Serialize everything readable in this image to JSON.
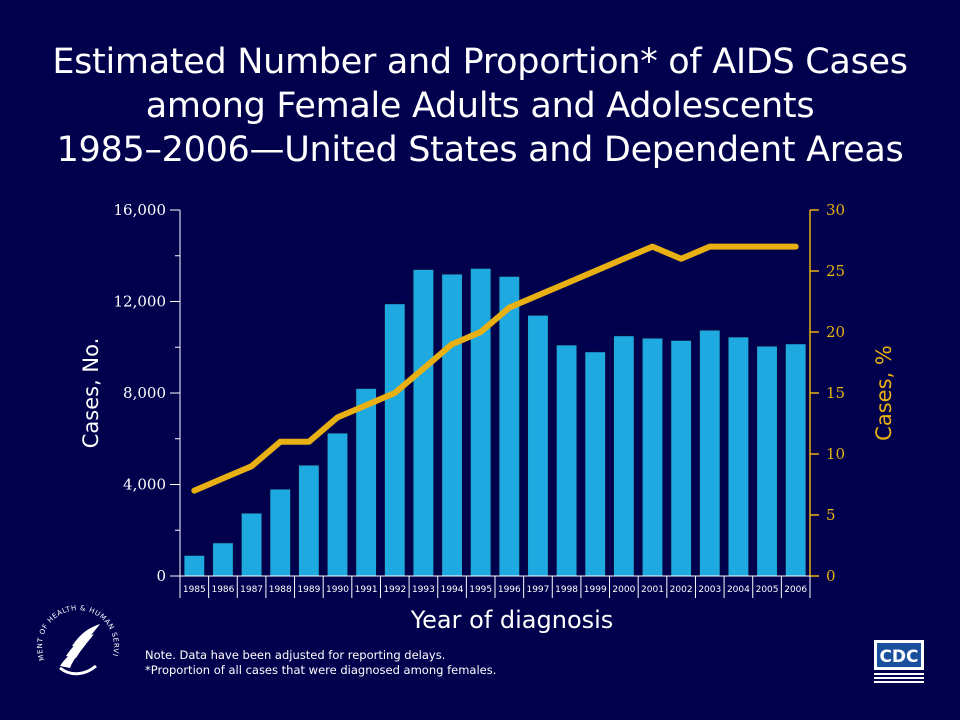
{
  "title": {
    "line1": "Estimated Number and Proportion* of AIDS Cases",
    "line2": "among Female Adults and Adolescents",
    "line3": "1985–2006—United States and Dependent Areas"
  },
  "notes": {
    "line1": "Note. Data have been adjusted for reporting delays.",
    "line2": "*Proportion of all cases that were diagnosed among females."
  },
  "logos": {
    "hhs_text": "DEPARTMENT OF HEALTH & HUMAN SERVICES USA",
    "cdc_text": "CDC"
  },
  "colors": {
    "background": "#00004d",
    "bar": "#1fa9e1",
    "line": "#e8b012",
    "axis": "#ffffff"
  },
  "chart_data": {
    "type": "bar",
    "title": "Estimated Number and Proportion* of AIDS Cases among Female Adults and Adolescents 1985–2006—United States and Dependent Areas",
    "xlabel": "Year of diagnosis",
    "ylabel": "Cases, No.",
    "y2label": "Cases, %",
    "categories": [
      "1985",
      "1986",
      "1987",
      "1988",
      "1989",
      "1990",
      "1991",
      "1992",
      "1993",
      "1994",
      "1995",
      "1996",
      "1997",
      "1998",
      "1999",
      "2000",
      "2001",
      "2002",
      "2003",
      "2004",
      "2005",
      "2006"
    ],
    "ylim": [
      0,
      16000
    ],
    "y2lim": [
      0,
      30
    ],
    "yticks": [
      "0",
      "4,000",
      "8,000",
      "12,000",
      "16,000"
    ],
    "y2ticks": [
      "0",
      "5",
      "10",
      "15",
      "20",
      "25",
      "30"
    ],
    "series": [
      {
        "name": "Cases, No.",
        "type": "bar",
        "axis": "left",
        "values": [
          900,
          1450,
          2750,
          3800,
          4850,
          6250,
          8200,
          11900,
          13400,
          13200,
          13450,
          13100,
          11400,
          10100,
          9800,
          10500,
          10400,
          10300,
          10750,
          10450,
          10050,
          10150
        ]
      },
      {
        "name": "Cases, %",
        "type": "line",
        "axis": "right",
        "values": [
          7,
          8,
          9,
          11,
          11,
          13,
          14,
          15,
          17,
          19,
          20,
          22,
          23,
          24,
          25,
          26,
          27,
          26,
          27,
          27,
          27,
          27
        ]
      }
    ]
  }
}
